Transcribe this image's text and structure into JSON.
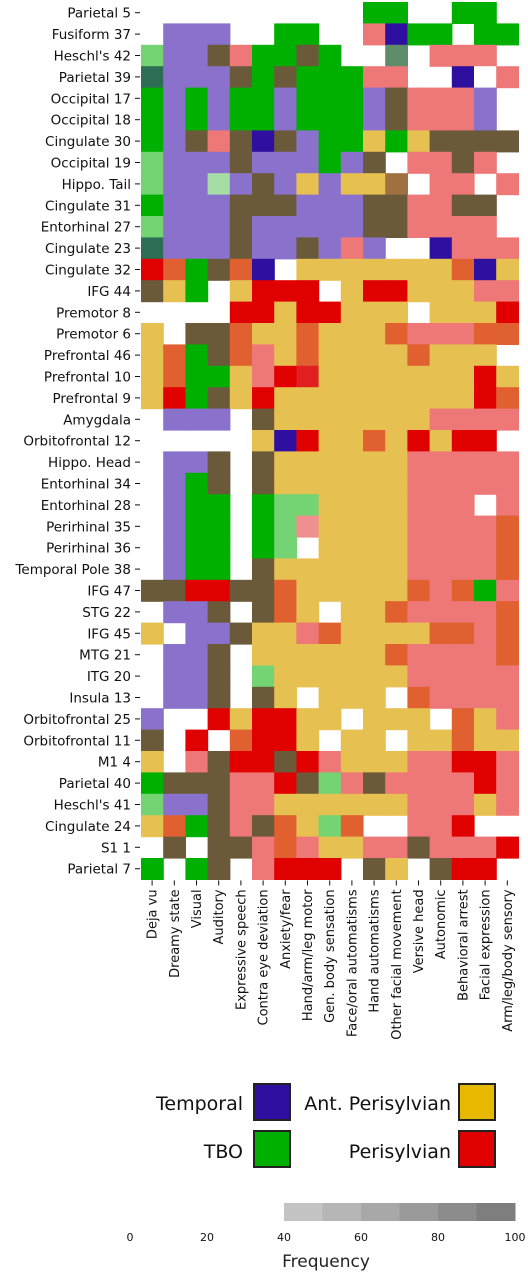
{
  "chart_data": {
    "type": "heatmap",
    "title": "",
    "rows": [
      "Parietal 5",
      "Fusiform 37",
      "Heschl's 42",
      "Parietal 39",
      "Occipital 17",
      "Occipital 18",
      "Cingulate 30",
      "Occipital 19",
      "Hippo. Tail",
      "Cingulate 31",
      "Entorhinal 27",
      "Cingulate 23",
      "Cingulate 32",
      "IFG 44",
      "Premotor 8",
      "Premotor 6",
      "Prefrontal 46",
      "Prefrontal 10",
      "Prefrontal 9",
      "Amygdala",
      "Orbitofrontal 12",
      "Hippo. Head",
      "Entorhinal 34",
      "Entorhinal 28",
      "Perirhinal 35",
      "Perirhinal 36",
      "Temporal Pole 38",
      "IFG 47",
      "STG 22",
      "IFG 45",
      "MTG 21",
      "ITG 20",
      "Insula 13",
      "Orbitofrontal 25",
      "Orbitofrontal 11",
      "M1 4",
      "Parietal 40",
      "Heschl's 41",
      "Cingulate 24",
      "S1 1",
      "Parietal 7"
    ],
    "columns": [
      "Deja vu",
      "Dreamy state",
      "Visual",
      "Auditory",
      "Expressive speech",
      "Contra eye deviation",
      "Anxiety/fear",
      "Hand/arm/leg motor",
      "Gen. body sensation",
      "Face/oral automatisms",
      "Hand automatisms",
      "Other facial movement",
      "Versive head",
      "Autonomic",
      "Behavioral arrest",
      "Facial expression",
      "Arm/leg/body sensory"
    ],
    "legend": [
      {
        "label": "Temporal",
        "color": "#2e0fa0"
      },
      {
        "label": "TBO",
        "color": "#00b000"
      },
      {
        "label": "Ant. Perisylvian",
        "color": "#e6b800"
      },
      {
        "label": "Perisylvian",
        "color": "#e00000"
      }
    ],
    "frequency": {
      "title": "Frequency",
      "ticks": [
        0,
        20,
        40,
        60,
        80,
        100
      ],
      "range": [
        0,
        100
      ]
    },
    "cells": [
      "          MM  MM",
      " LLL  MM  XTMM MM",
      "GLLhXMMhM..Z.XXX",
      "ALLLhMhMMMXX..TWX",
      "MLMLMMLMMMLDXXXL",
      "MLMLMMLMMMLDXXXL",
      "MLhXhTDLMMEMEhhhh",
      "GLLLhLLLMLh.XXhX",
      "GLLlLhLELEEI.XX.X",
      "MLLLhhhLLLhhXXhh",
      "GLLLhLLLLLhhXXXX",
      "ALLLhLLhLXL  TXXX",
      "ROMhOT.EEEEEEEOTE",
      "hEM.ERRR.ERREEEXXE",
      "    RRERREEE.EEERE",
      "E hhOEEOEEEOXXXOO",
      "EOMhOXEOEEEEOEEE",
      "EOMMEXRrEEEEEEEREE",
      "ERMhEREEEEEEEEERO",
      " LLL hEEEEEEEXXXXX",
      "     ETREEOERERR E",
      " LLh hEEEEEEXXXXXX",
      " LMh hEEEEEEXXXXX",
      " LMM MGGEEEEXXX.X",
      " LMM MGpEEEEXXXXO",
      " LMM MG.EEEEXXXXO",
      " LMM hEEEEEEXXXXO",
      "hhRRhhOEEEEEOXOMX",
      " LLh hOE.EEOXXXXO",
      "E LLhEEXOEEEEOOXO",
      " LLh EEEEEEOXXXXO",
      " LLh GEEEEEEXXXXX",
      " LLh hE.EEE.OXXXX",
      "L  RERREE.EEE.OEXX",
      "h R ORRE.EE.EEOEE",
      "E XhRRhRXEEEXXRRXR",
      "MhhhXXRhGXhXXXXRX",
      "GLLhXXEEEEEEXXXEX",
      "EOMhXhOEGO..XXR",
      " h.hhXOXEEXXhXXXR",
      "M Mh XRRR hE hRR R"
    ]
  }
}
